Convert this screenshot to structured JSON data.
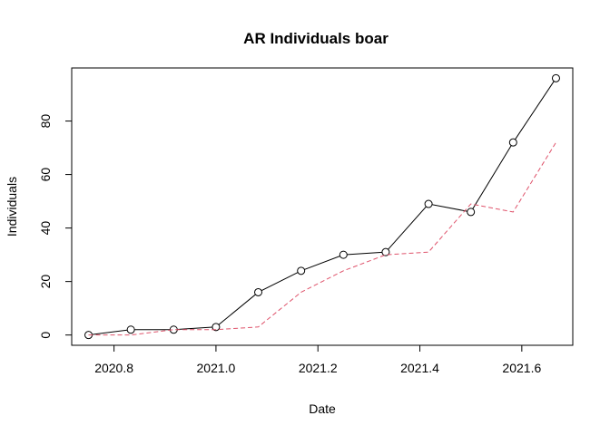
{
  "chart_data": {
    "type": "line",
    "title": "AR Individuals boar",
    "xlabel": "Date",
    "ylabel": "Individuals",
    "xlim": [
      2020.717,
      2021.7
    ],
    "ylim": [
      -3.84,
      99.84
    ],
    "x_ticks": [
      2020.8,
      2021.0,
      2021.2,
      2021.4,
      2021.6
    ],
    "x_tick_labels": [
      "2020.8",
      "2021.0",
      "2021.2",
      "2021.4",
      "2021.6"
    ],
    "y_ticks": [
      0,
      20,
      40,
      60,
      80
    ],
    "y_tick_labels": [
      "0",
      "20",
      "40",
      "60",
      "80"
    ],
    "grid": false,
    "x": [
      2020.75,
      2020.833,
      2020.917,
      2021.0,
      2021.083,
      2021.167,
      2021.25,
      2021.333,
      2021.417,
      2021.5,
      2021.583,
      2021.667
    ],
    "series": [
      {
        "values": [
          0,
          2,
          2,
          3,
          16,
          24,
          30,
          31,
          49,
          46,
          72,
          96
        ],
        "color": "#000000",
        "style": "solid",
        "markers": "open-circle"
      },
      {
        "values": [
          0,
          0,
          2,
          2,
          3,
          16,
          24,
          30,
          31,
          49,
          46,
          72
        ],
        "color": "#df536b",
        "style": "dashed",
        "markers": "none"
      }
    ]
  }
}
